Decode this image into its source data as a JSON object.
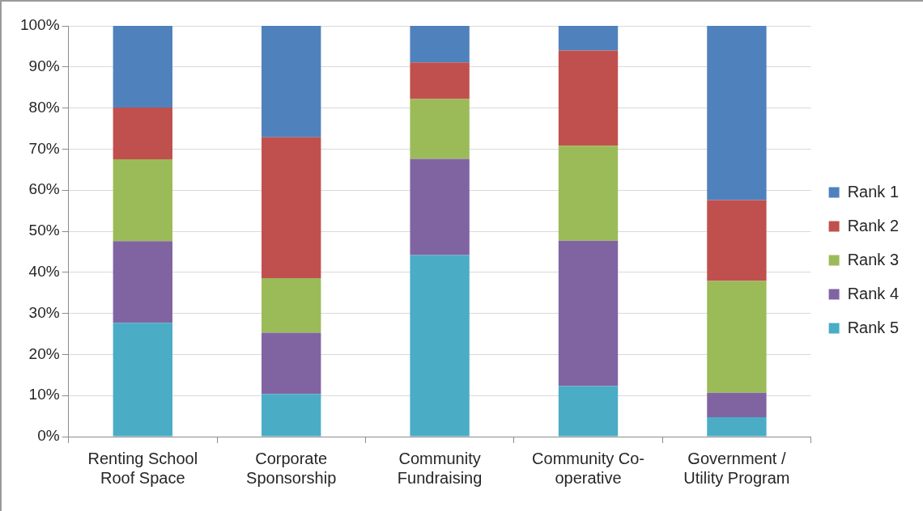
{
  "chart_data": {
    "type": "bar",
    "stacked": true,
    "categories": [
      "Renting School Roof Space",
      "Corporate Sponsorship",
      "Community Fundraising",
      "Community Co-operative",
      "Government / Utility Program"
    ],
    "series": [
      {
        "name": "Rank 5",
        "color": "#4bacc6",
        "values": [
          27.7,
          10.4,
          44.2,
          12.3,
          4.7
        ]
      },
      {
        "name": "Rank 4",
        "color": "#8064a2",
        "values": [
          19.9,
          14.9,
          23.4,
          35.4,
          6.0
        ]
      },
      {
        "name": "Rank 3",
        "color": "#9bbb59",
        "values": [
          19.9,
          13.3,
          14.6,
          23.1,
          27.2
        ]
      },
      {
        "name": "Rank 2",
        "color": "#c0504d",
        "values": [
          12.6,
          34.3,
          8.9,
          23.2,
          19.7
        ]
      },
      {
        "name": "Rank 1",
        "color": "#4f81bd",
        "values": [
          19.9,
          27.1,
          8.9,
          6.0,
          42.4
        ]
      }
    ],
    "ylim": [
      0,
      100
    ],
    "yticks": [
      {
        "value": 0,
        "label": "0%"
      },
      {
        "value": 10,
        "label": "10%"
      },
      {
        "value": 20,
        "label": "20%"
      },
      {
        "value": 30,
        "label": "30%"
      },
      {
        "value": 40,
        "label": "40%"
      },
      {
        "value": 50,
        "label": "50%"
      },
      {
        "value": 60,
        "label": "60%"
      },
      {
        "value": 70,
        "label": "70%"
      },
      {
        "value": 80,
        "label": "80%"
      },
      {
        "value": 90,
        "label": "90%"
      },
      {
        "value": 100,
        "label": "100%"
      }
    ],
    "grid": "y",
    "legend": "right"
  }
}
